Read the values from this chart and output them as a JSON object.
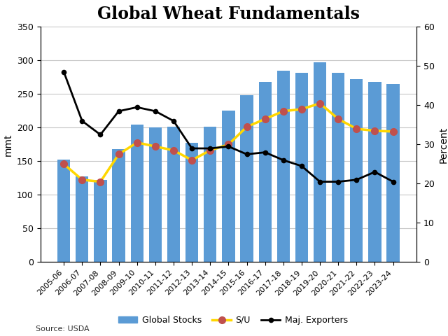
{
  "title": "Global Wheat Fundamentals",
  "categories": [
    "2005-06",
    "2006-07",
    "2007-08",
    "2008-09",
    "2009-10",
    "2010-11",
    "2011-12",
    "2012-13",
    "2013-14",
    "2014-15",
    "2015-16",
    "2016-17",
    "2017-18",
    "2018-19",
    "2019-20",
    "2020-21",
    "2021-22",
    "2022-23",
    "2023-24"
  ],
  "global_stocks": [
    153,
    128,
    122,
    168,
    205,
    200,
    201,
    178,
    201,
    225,
    248,
    268,
    285,
    282,
    297,
    282,
    272,
    268,
    265
  ],
  "su_ratio": [
    25.0,
    21.0,
    20.5,
    27.5,
    30.5,
    29.5,
    28.5,
    26.0,
    28.5,
    30.0,
    34.5,
    36.5,
    38.5,
    39.0,
    40.5,
    36.5,
    34.0,
    33.5,
    33.3
  ],
  "maj_exporters": [
    48.5,
    36.0,
    32.5,
    38.5,
    39.5,
    38.5,
    36.0,
    29.0,
    29.0,
    29.5,
    27.5,
    28.0,
    26.0,
    24.5,
    20.5,
    20.5,
    21.0,
    23.0,
    20.5
  ],
  "bar_color": "#5b9bd5",
  "su_line_color": "#ffd700",
  "su_marker_color": "#c0504d",
  "exporters_line_color": "#000000",
  "ylabel_left": "mmt",
  "ylabel_right": "Percent",
  "ylim_left": [
    0,
    350
  ],
  "ylim_right": [
    0,
    60
  ],
  "yticks_left": [
    0,
    50,
    100,
    150,
    200,
    250,
    300,
    350
  ],
  "yticks_right": [
    0,
    10,
    20,
    30,
    40,
    50,
    60
  ],
  "title_fontsize": 17,
  "title_fontstyle": "bold",
  "title_fontfamily": "serif",
  "legend_labels": [
    "Global Stocks",
    "S/U",
    "Maj. Exporters"
  ],
  "source_text": "Source: USDA",
  "background_color": "#ffffff",
  "grid_color": "#c8c8c8"
}
